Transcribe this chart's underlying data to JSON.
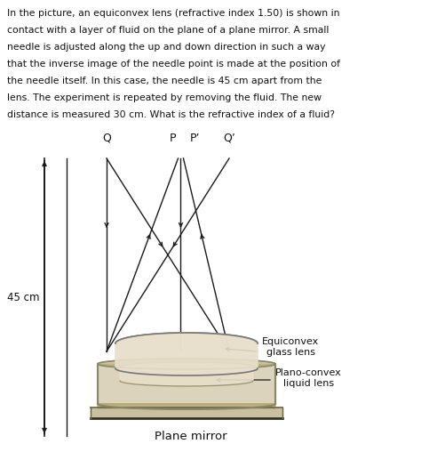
{
  "text_paragraph": "In the picture, an equiconvex lens (refractive index 1.50) is shown in\ncontact with a layer of fluid on the plane of a plane mirror. A small\nneedle is adjusted along the up and down direction in such a way\nthat the inverse image of the needle point is made at the position of\nthe needle itself. In this case, the needle is 45 cm apart from the\nlens. The experiment is repeated by removing the fluid. The new\ndistance is measured 30 cm. What is the refractive index of a fluid?",
  "label_Q": "Q",
  "label_P": "P",
  "label_P_prime": "P’",
  "label_Q_prime": "Q’",
  "label_45cm": "45 cm",
  "label_equiconvex": "Equiconvex\nglass lens",
  "label_planoconvex": "Plano-convex\nliquid lens",
  "label_mirror": "Plane mirror",
  "bg_color": "#ffffff",
  "line_color": "#1a1a1a",
  "lens_fill": "#d8ccb0",
  "lens_fill2": "#e8e0cc",
  "lens_edge": "#777777",
  "mirror_fill": "#b8a878",
  "mirror_edge": "#666644",
  "mirror_top_fill": "#ccbbaa"
}
